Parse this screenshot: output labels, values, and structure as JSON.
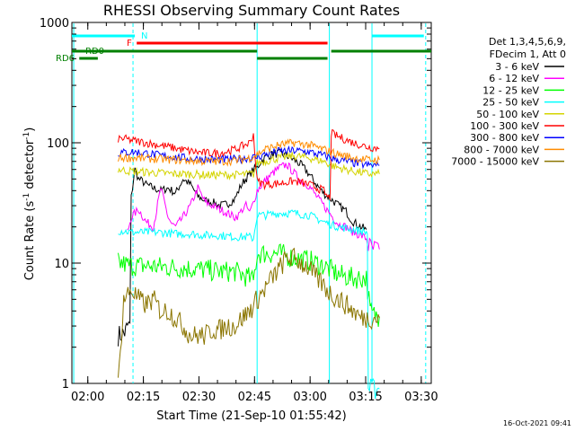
{
  "chart_data": {
    "type": "line",
    "title": "RHESSI Observing Summary Count Rates",
    "xlabel": "Start Time (21-Sep-10 01:55:42)",
    "ylabel_parts": [
      "Count Rate (s",
      "-1",
      " detector",
      "-1",
      ")"
    ],
    "x_unit": "minutes after 01:55:42",
    "xlim": [
      0,
      97
    ],
    "ylim": [
      1,
      1000
    ],
    "y_scale": "log",
    "grid": false,
    "x_ticks": [
      {
        "value": 4.3,
        "label": "02:00"
      },
      {
        "value": 19.3,
        "label": "02:15"
      },
      {
        "value": 34.3,
        "label": "02:30"
      },
      {
        "value": 49.3,
        "label": "02:45"
      },
      {
        "value": 64.3,
        "label": "03:00"
      },
      {
        "value": 79.3,
        "label": "03:15"
      },
      {
        "value": 94.3,
        "label": "03:30"
      }
    ],
    "y_ticks": [
      {
        "value": 1,
        "label": "1"
      },
      {
        "value": 10,
        "label": "10"
      },
      {
        "value": 100,
        "label": "100"
      },
      {
        "value": 1000,
        "label": "1000"
      }
    ],
    "legend_header": [
      "Det 1,3,4,5,6,9,",
      "FDecim 1, Att 0"
    ],
    "legend_placement": "right",
    "series": [
      {
        "name": "3 - 6 keV",
        "color": "#000000",
        "x": [
          12.5,
          14,
          14.5,
          15,
          16,
          17,
          18,
          19,
          20,
          22,
          24,
          26,
          28,
          30,
          32,
          34,
          36,
          38,
          40,
          42,
          44,
          45,
          46,
          48,
          49,
          50,
          51,
          52,
          53,
          54,
          56,
          58,
          60,
          62,
          64,
          66,
          68,
          70,
          72,
          74,
          75,
          76,
          78,
          79.5
        ],
        "y": [
          2.5,
          2.6,
          2.7,
          3,
          35,
          60,
          50,
          48,
          45,
          42,
          40,
          42,
          38,
          50,
          45,
          36,
          33,
          32,
          30,
          31,
          34,
          40,
          46,
          55,
          60,
          62,
          70,
          75,
          78,
          80,
          82,
          78,
          72,
          65,
          55,
          45,
          38,
          34,
          30,
          27,
          24,
          22,
          20,
          19
        ]
      },
      {
        "name": "6 - 12 keV",
        "color": "#ff00ff",
        "x": [
          15,
          16,
          18,
          20,
          22,
          24,
          26,
          27,
          28,
          30,
          32,
          34,
          36,
          38,
          40,
          42,
          44,
          45,
          46,
          47,
          48,
          49,
          50,
          52,
          54,
          56,
          58,
          60,
          62,
          64,
          66,
          68,
          70,
          72,
          74,
          76,
          78,
          79.5,
          80,
          81,
          82,
          83
        ],
        "y": [
          18,
          24,
          28,
          22,
          20,
          42,
          24,
          21,
          20,
          24,
          30,
          42,
          32,
          30,
          28,
          26,
          24,
          25,
          28,
          30,
          26,
          32,
          40,
          48,
          55,
          62,
          66,
          56,
          48,
          44,
          36,
          30,
          25,
          21,
          20,
          18,
          17,
          16,
          14,
          13,
          13,
          13
        ]
      },
      {
        "name": "12 - 25 keV",
        "color": "#00ff00",
        "x": [
          12.5,
          14,
          16,
          20,
          24,
          28,
          32,
          36,
          40,
          44,
          48,
          49,
          50,
          52,
          56,
          60,
          64,
          68,
          72,
          76,
          79.5,
          80.5,
          81,
          83
        ],
        "y": [
          10,
          9.8,
          9.5,
          9.5,
          9.3,
          9.2,
          9,
          8.8,
          8.5,
          8.5,
          7.5,
          7,
          12,
          12,
          12,
          11,
          10.5,
          9.5,
          8,
          7.5,
          7.5,
          4,
          3.8,
          3.6
        ]
      },
      {
        "name": "25 - 50 keV",
        "color": "#00ffff",
        "x": [
          12.5,
          14,
          16,
          20,
          24,
          28,
          32,
          36,
          40,
          44,
          48,
          49,
          50,
          52,
          56,
          60,
          64,
          68,
          72,
          76,
          79.5,
          80,
          81,
          83
        ],
        "y": [
          18.5,
          18.5,
          18,
          18,
          18,
          17.5,
          17.5,
          17,
          17,
          16.5,
          16.5,
          16,
          25,
          25,
          26,
          26,
          25,
          22,
          20,
          19,
          18,
          0.9,
          0.9,
          0.9
        ]
      },
      {
        "name": "50 - 100 keV",
        "color": "#d4d400",
        "x": [
          12.5,
          16,
          20,
          24,
          28,
          32,
          36,
          40,
          44,
          48,
          49,
          50,
          52,
          56,
          60,
          64,
          68,
          70,
          72,
          76,
          80,
          83
        ],
        "y": [
          60,
          58,
          57,
          56,
          55,
          55,
          54,
          54,
          54,
          55,
          55,
          68,
          70,
          75,
          78,
          75,
          70,
          65,
          62,
          58,
          55,
          55
        ]
      },
      {
        "name": "100 - 300 keV",
        "color": "#ff0000",
        "x": [
          12.5,
          14,
          16,
          20,
          24,
          28,
          32,
          36,
          40,
          44,
          48,
          49,
          50,
          52,
          56,
          60,
          64,
          68,
          69,
          70,
          72,
          76,
          80,
          83
        ],
        "y": [
          108,
          108,
          105,
          100,
          95,
          90,
          85,
          82,
          82,
          88,
          100,
          118,
          48,
          45,
          46,
          48,
          45,
          40,
          35,
          120,
          112,
          100,
          92,
          90
        ]
      },
      {
        "name": "300 - 800 keV",
        "color": "#0000ff",
        "x": [
          12.5,
          16,
          20,
          24,
          28,
          32,
          36,
          40,
          44,
          48,
          50,
          52,
          56,
          60,
          64,
          68,
          72,
          76,
          80,
          83
        ],
        "y": [
          82,
          84,
          82,
          78,
          76,
          74,
          73,
          72,
          73,
          75,
          76,
          80,
          85,
          86,
          84,
          78,
          72,
          68,
          65,
          65
        ]
      },
      {
        "name": "800 - 7000 keV",
        "color": "#ff8c00",
        "x": [
          12.5,
          16,
          20,
          24,
          28,
          32,
          36,
          40,
          44,
          48,
          50,
          52,
          56,
          60,
          64,
          68,
          72,
          76,
          80,
          83
        ],
        "y": [
          75,
          75,
          74,
          73,
          72,
          71,
          70,
          70,
          71,
          75,
          80,
          88,
          96,
          100,
          96,
          88,
          80,
          75,
          72,
          72
        ]
      },
      {
        "name": "7000 - 15000 keV",
        "color": "#8b7500",
        "x": [
          12.5,
          14,
          16,
          18,
          20,
          22,
          24,
          26,
          28,
          30,
          32,
          34,
          36,
          38,
          40,
          42,
          44,
          46,
          48,
          50,
          52,
          54,
          56,
          58,
          60,
          62,
          64,
          66,
          68,
          70,
          72,
          74,
          76,
          78,
          80,
          83
        ],
        "y": [
          1,
          5,
          6,
          5,
          4.5,
          5,
          4,
          4,
          3.5,
          3,
          2.5,
          2.5,
          2.5,
          2.8,
          2.8,
          3,
          3,
          3.5,
          4,
          5,
          6,
          7.5,
          9,
          11,
          11,
          10,
          9,
          7.5,
          6.5,
          5.5,
          5,
          4.5,
          4,
          3.5,
          3.5,
          3.5
        ]
      }
    ],
    "flag_bars": [
      {
        "label": "N",
        "color": "#00ffff",
        "segments": [
          [
            0,
            17
          ],
          [
            81,
            95
          ]
        ]
      },
      {
        "label": "F",
        "color": "#ff0000",
        "segments": [
          [
            17.5,
            69
          ]
        ]
      },
      {
        "label": "RD0",
        "color": "#008000",
        "segments": [
          [
            0,
            50
          ],
          [
            70,
            97
          ]
        ]
      },
      {
        "label": "RD6",
        "color": "#008000",
        "segments": [
          [
            2,
            7
          ],
          [
            50,
            69
          ]
        ]
      }
    ],
    "vlines": [
      {
        "x": 0.5,
        "color": "#00ffff",
        "style": "solid"
      },
      {
        "x": 16.5,
        "color": "#00ffff",
        "style": "dashed"
      },
      {
        "x": 50,
        "color": "#00ffff",
        "style": "solid"
      },
      {
        "x": 69.5,
        "color": "#00ffff",
        "style": "solid"
      },
      {
        "x": 81,
        "color": "#00ffff",
        "style": "solid"
      },
      {
        "x": 95.5,
        "color": "#00ffff",
        "style": "dashed"
      }
    ]
  },
  "footer_date": "16-Oct-2021 09:41"
}
